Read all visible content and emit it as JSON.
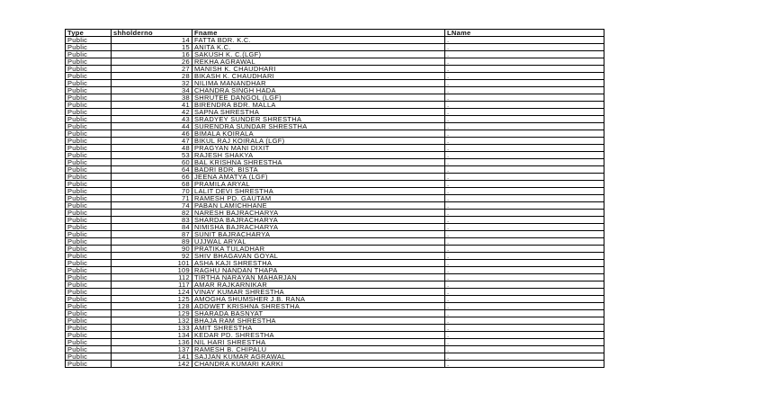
{
  "headers": [
    "Type",
    "shholderno",
    "Fname",
    "LName"
  ],
  "rows": [
    [
      "Public",
      "14",
      "FATTA BDR. K.C.",
      "."
    ],
    [
      "Public",
      "15",
      "ANITA K.C.",
      "."
    ],
    [
      "Public",
      "16",
      "SAKUSH K. C.(LGF)",
      "."
    ],
    [
      "Public",
      "26",
      "REKHA AGRAWAL",
      "."
    ],
    [
      "Public",
      "27",
      "MANISH K. CHAUDHARI",
      "."
    ],
    [
      "Public",
      "28",
      "BIKASH K. CHAUDHARI",
      "."
    ],
    [
      "Public",
      "32",
      "NILIMA MANANDHAR",
      "."
    ],
    [
      "Public",
      "34",
      "CHANDRA SINGH HADA",
      "."
    ],
    [
      "Public",
      "38",
      "SHRUTEE DANGOL (LGF)",
      "."
    ],
    [
      "Public",
      "41",
      "BIRENDRA BDR. MALLA",
      "."
    ],
    [
      "Public",
      "42",
      "SAPNA SHRESTHA",
      "."
    ],
    [
      "Public",
      "43",
      "SRADYEY SUNDER SHRESTHA",
      "."
    ],
    [
      "Public",
      "44",
      "SURENDRA SUNDAR SHRESTHA",
      "."
    ],
    [
      "Public",
      "46",
      "BIMALA KOIRALA",
      "."
    ],
    [
      "Public",
      "47",
      "BIKUL RAJ KOIRALA (LGF)",
      "."
    ],
    [
      "Public",
      "48",
      "PRAGYAN MANI DIXIT",
      "."
    ],
    [
      "Public",
      "53",
      "RAJESH SHAKYA",
      "."
    ],
    [
      "Public",
      "60",
      "BAL KRISHNA SHRESTHA",
      "."
    ],
    [
      "Public",
      "64",
      "BADRI BDR. BISTA",
      "."
    ],
    [
      "Public",
      "66",
      "JEENA AMATYA (LGF)",
      "."
    ],
    [
      "Public",
      "68",
      "PRAMILA ARYAL",
      "."
    ],
    [
      "Public",
      "70",
      "LALIT DEVI SHRESTHA",
      "."
    ],
    [
      "Public",
      "71",
      "RAMESH PD. GAUTAM",
      "."
    ],
    [
      "Public",
      "74",
      "PABAN LAMICHHANE",
      "."
    ],
    [
      "Public",
      "82",
      "NARESH BAJRACHARYA",
      "."
    ],
    [
      "Public",
      "83",
      "SHARDA BAJRACHARYA",
      "."
    ],
    [
      "Public",
      "84",
      "NIMISHA BAJRACHARYA",
      "."
    ],
    [
      "Public",
      "87",
      "SUNIT BAJRACHARYA",
      "."
    ],
    [
      "Public",
      "89",
      "UJJWAL ARYAL",
      "."
    ],
    [
      "Public",
      "90",
      "PRATIKA TULADHAR",
      "."
    ],
    [
      "Public",
      "92",
      "SHIV BHAGAVAN GOYAL",
      "."
    ],
    [
      "Public",
      "101",
      "ASHA KAJI SHRESTHA",
      "."
    ],
    [
      "Public",
      "109",
      "RAGHU NANDAN THAPA",
      "."
    ],
    [
      "Public",
      "112",
      "TIRTHA NARAYAN MAHARJAN",
      "."
    ],
    [
      "Public",
      "117",
      "AMAR RAJKARNIKAR",
      "."
    ],
    [
      "Public",
      "124",
      "VINAY KUMAR SHRESTHA",
      "."
    ],
    [
      "Public",
      "125",
      "AMOGHA SHUMSHER J.B. RANA",
      "."
    ],
    [
      "Public",
      "128",
      "ADDWET KRISHNA SHRESTHA",
      "."
    ],
    [
      "Public",
      "129",
      "SHARADA BASNYAT",
      "."
    ],
    [
      "Public",
      "132",
      "BHAJA RAM SHRESTHA",
      "."
    ],
    [
      "Public",
      "133",
      "AMIT SHRESTHA",
      "."
    ],
    [
      "Public",
      "134",
      "KEDAR PD. SHRESTHA",
      "."
    ],
    [
      "Public",
      "136",
      "NIL HARI SHRESTHA",
      "."
    ],
    [
      "Public",
      "137",
      "RAMESH B. CHIPALU",
      "."
    ],
    [
      "Public",
      "141",
      "SAJJAN KUMAR AGRAWAL",
      "."
    ],
    [
      "Public",
      "142",
      "CHANDRA KUMARI KARKI",
      "."
    ]
  ]
}
